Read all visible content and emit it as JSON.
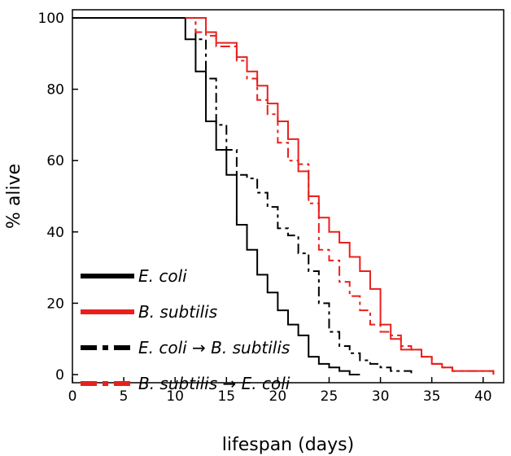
{
  "chart_data": {
    "type": "line",
    "xlabel": "lifespan (days)",
    "ylabel": "% alive",
    "xlim": [
      0,
      42
    ],
    "ylim": [
      0,
      100
    ],
    "xticks": [
      0,
      5,
      10,
      15,
      20,
      25,
      30,
      35,
      40
    ],
    "yticks": [
      0,
      20,
      40,
      60,
      80,
      100
    ],
    "grid": false,
    "legend_position": "bottom-left",
    "step": true,
    "series": [
      {
        "name": "E. coli",
        "color": "#000000",
        "dash": "solid",
        "x": [
          0,
          11,
          12,
          13,
          14,
          15,
          16,
          17,
          18,
          19,
          20,
          21,
          22,
          23,
          24,
          25,
          26,
          27,
          28
        ],
        "y": [
          100,
          94,
          85,
          71,
          63,
          56,
          42,
          35,
          28,
          23,
          18,
          14,
          11,
          5,
          3,
          2,
          1,
          0,
          0
        ]
      },
      {
        "name": "B. subtilis",
        "color": "#e8201c",
        "dash": "solid",
        "x": [
          11,
          13,
          14,
          16,
          17,
          18,
          19,
          20,
          21,
          22,
          23,
          24,
          25,
          26,
          27,
          28,
          29,
          30,
          31,
          32,
          34,
          35,
          36,
          37,
          41
        ],
        "y": [
          100,
          96,
          93,
          89,
          85,
          81,
          76,
          71,
          66,
          57,
          50,
          44,
          40,
          37,
          33,
          29,
          24,
          14,
          10,
          7,
          5,
          3,
          2,
          1,
          0
        ]
      },
      {
        "name": "E. coli → B. subtilis",
        "color": "#000000",
        "dash": "dash-dot",
        "x": [
          11,
          12,
          13,
          14,
          15,
          16,
          17,
          18,
          19,
          20,
          21,
          22,
          23,
          24,
          25,
          26,
          27,
          28,
          29,
          30,
          31,
          33
        ],
        "y": [
          100,
          94,
          83,
          70,
          63,
          56,
          55,
          51,
          47,
          41,
          39,
          34,
          29,
          20,
          12,
          8,
          6,
          4,
          3,
          2,
          1,
          0
        ]
      },
      {
        "name": "B. subtilis → E. coli",
        "color": "#e8201c",
        "dash": "dash-dot",
        "x": [
          11,
          12,
          13,
          14,
          16,
          17,
          18,
          19,
          20,
          21,
          22,
          23,
          24,
          25,
          26,
          27,
          28,
          29,
          30,
          31,
          32,
          33,
          34,
          35,
          36,
          37,
          41
        ],
        "y": [
          100,
          96,
          95,
          92,
          88,
          83,
          77,
          73,
          65,
          60,
          59,
          48,
          35,
          32,
          26,
          22,
          18,
          14,
          12,
          11,
          8,
          7,
          5,
          3,
          2,
          1,
          0
        ]
      }
    ]
  }
}
